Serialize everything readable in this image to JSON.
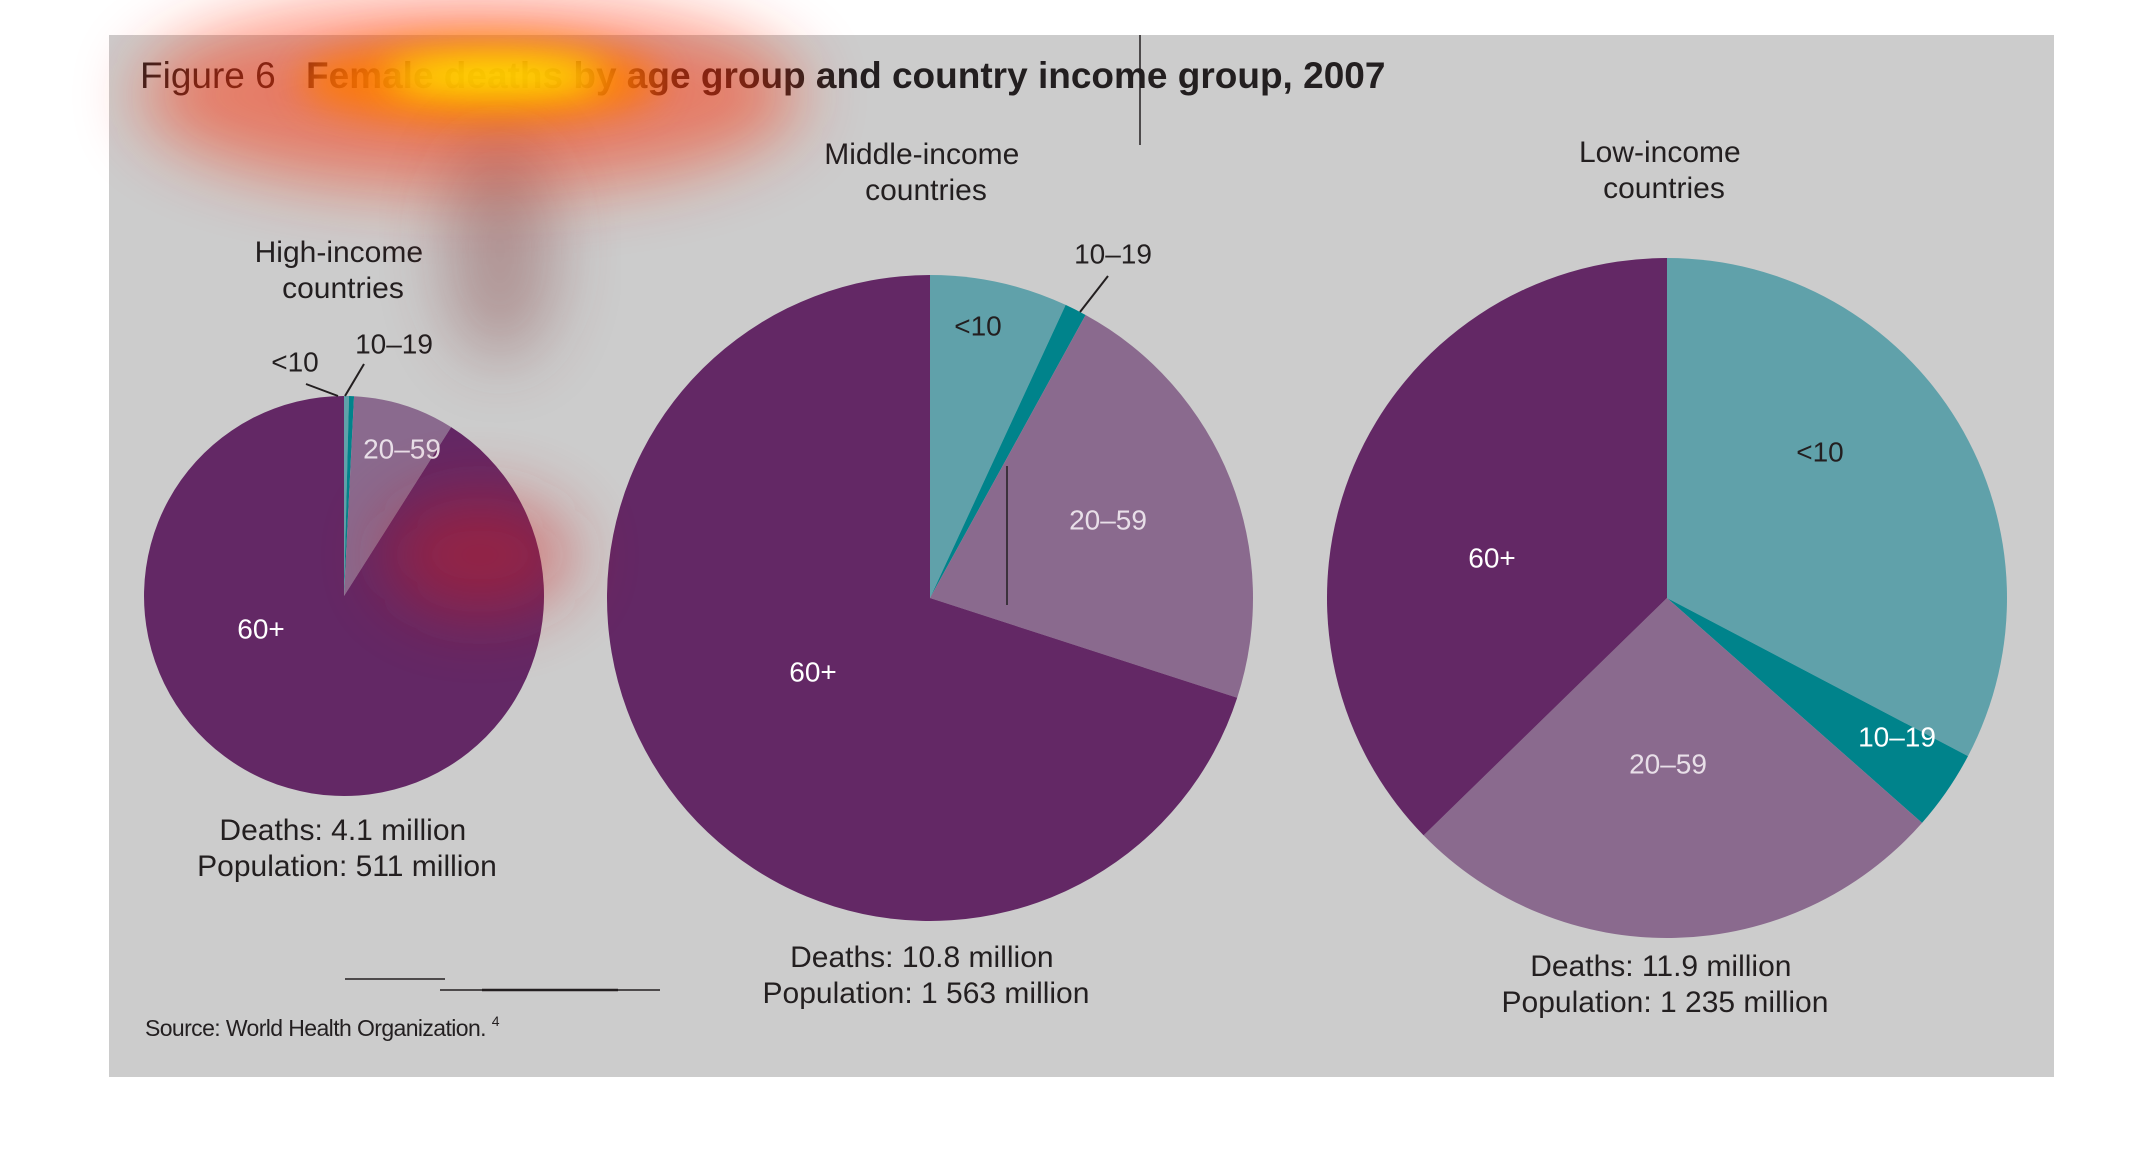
{
  "figure": {
    "label": "Figure 6",
    "title": "Female deaths by age group and country income group, 2007",
    "source": "Source: World Health Organization.",
    "source_sup": "4",
    "colors": {
      "panel_bg": "#cccccc",
      "under10": "#60a1aa",
      "age10_19": "#00838b",
      "age20_59": "#8a6a8e",
      "age60plus": "#632865",
      "title_accent": "#6b1d2e",
      "text": "#231f20",
      "overlay": "#ff2a00"
    }
  },
  "chart_data": [
    {
      "type": "pie",
      "name_lines": [
        "High-income",
        "countries"
      ],
      "labels": [
        "<10",
        "10–19",
        "20–59",
        "60+"
      ],
      "values": [
        0.4,
        0.4,
        8.2,
        91.0
      ],
      "deaths_label": "Deaths: 4.1 million",
      "population_label": "Population: 511 million"
    },
    {
      "type": "pie",
      "name_lines": [
        "Middle-income",
        "countries"
      ],
      "labels": [
        "<10",
        "10–19",
        "20–59",
        "60+"
      ],
      "values": [
        6.9,
        1.1,
        22.0,
        70.0
      ],
      "deaths_label": "Deaths: 10.8 million",
      "population_label": "Population: 1 563 million"
    },
    {
      "type": "pie",
      "name_lines": [
        "Low-income",
        "countries"
      ],
      "labels": [
        "<10",
        "10–19",
        "20–59",
        "60+"
      ],
      "values": [
        32.7,
        3.8,
        26.2,
        37.3
      ],
      "deaths_label": "Deaths: 11.9 million",
      "population_label": "Population: 1 235 million"
    }
  ]
}
